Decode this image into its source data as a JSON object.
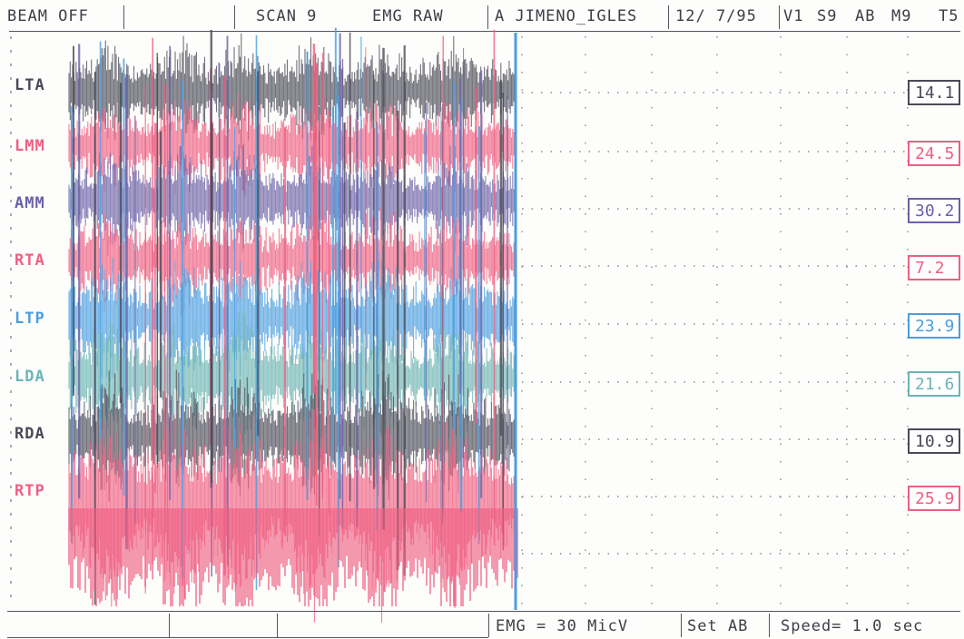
{
  "header": {
    "beam_status": "BEAM OFF",
    "scan": "SCAN 9",
    "mode": "EMG RAW",
    "patient": "A JIMENO_IGLES",
    "date": "12/ 7/95",
    "visit": "V1",
    "scan_code": "S9",
    "set_code": "AB",
    "m_code": "M9",
    "t_code": "T5"
  },
  "footer": {
    "emg_scale": "EMG = 30  MicV",
    "set_label": "Set AB",
    "speed": "Speed= 1.0 sec"
  },
  "colors": {
    "dark": "#4a4a58",
    "pink": "#ee5f82",
    "purple": "#6a62a6",
    "blue": "#4a9ee0",
    "teal": "#6cb5b4",
    "grid": "#8a8a96"
  },
  "chart_data": {
    "type": "line",
    "title": "",
    "xlabel": "",
    "ylabel": "",
    "series": [
      {
        "name": "LTA",
        "color": "#4a4a58",
        "rms": "14.1"
      },
      {
        "name": "LMM",
        "color": "#ee5f82",
        "rms": "24.5"
      },
      {
        "name": "AMM",
        "color": "#6a62a6",
        "rms": "30.2"
      },
      {
        "name": "RTA",
        "color": "#ee5f82",
        "rms": "7.2"
      },
      {
        "name": "LTP",
        "color": "#4a9ee0",
        "rms": "23.9"
      },
      {
        "name": "LDA",
        "color": "#6cb5b4",
        "rms": "21.6"
      },
      {
        "name": "RDA",
        "color": "#4a4a58",
        "rms": "10.9"
      },
      {
        "name": "RTP",
        "color": "#ee5f82",
        "rms": "25.9"
      }
    ],
    "grid": true,
    "legend": "left"
  }
}
